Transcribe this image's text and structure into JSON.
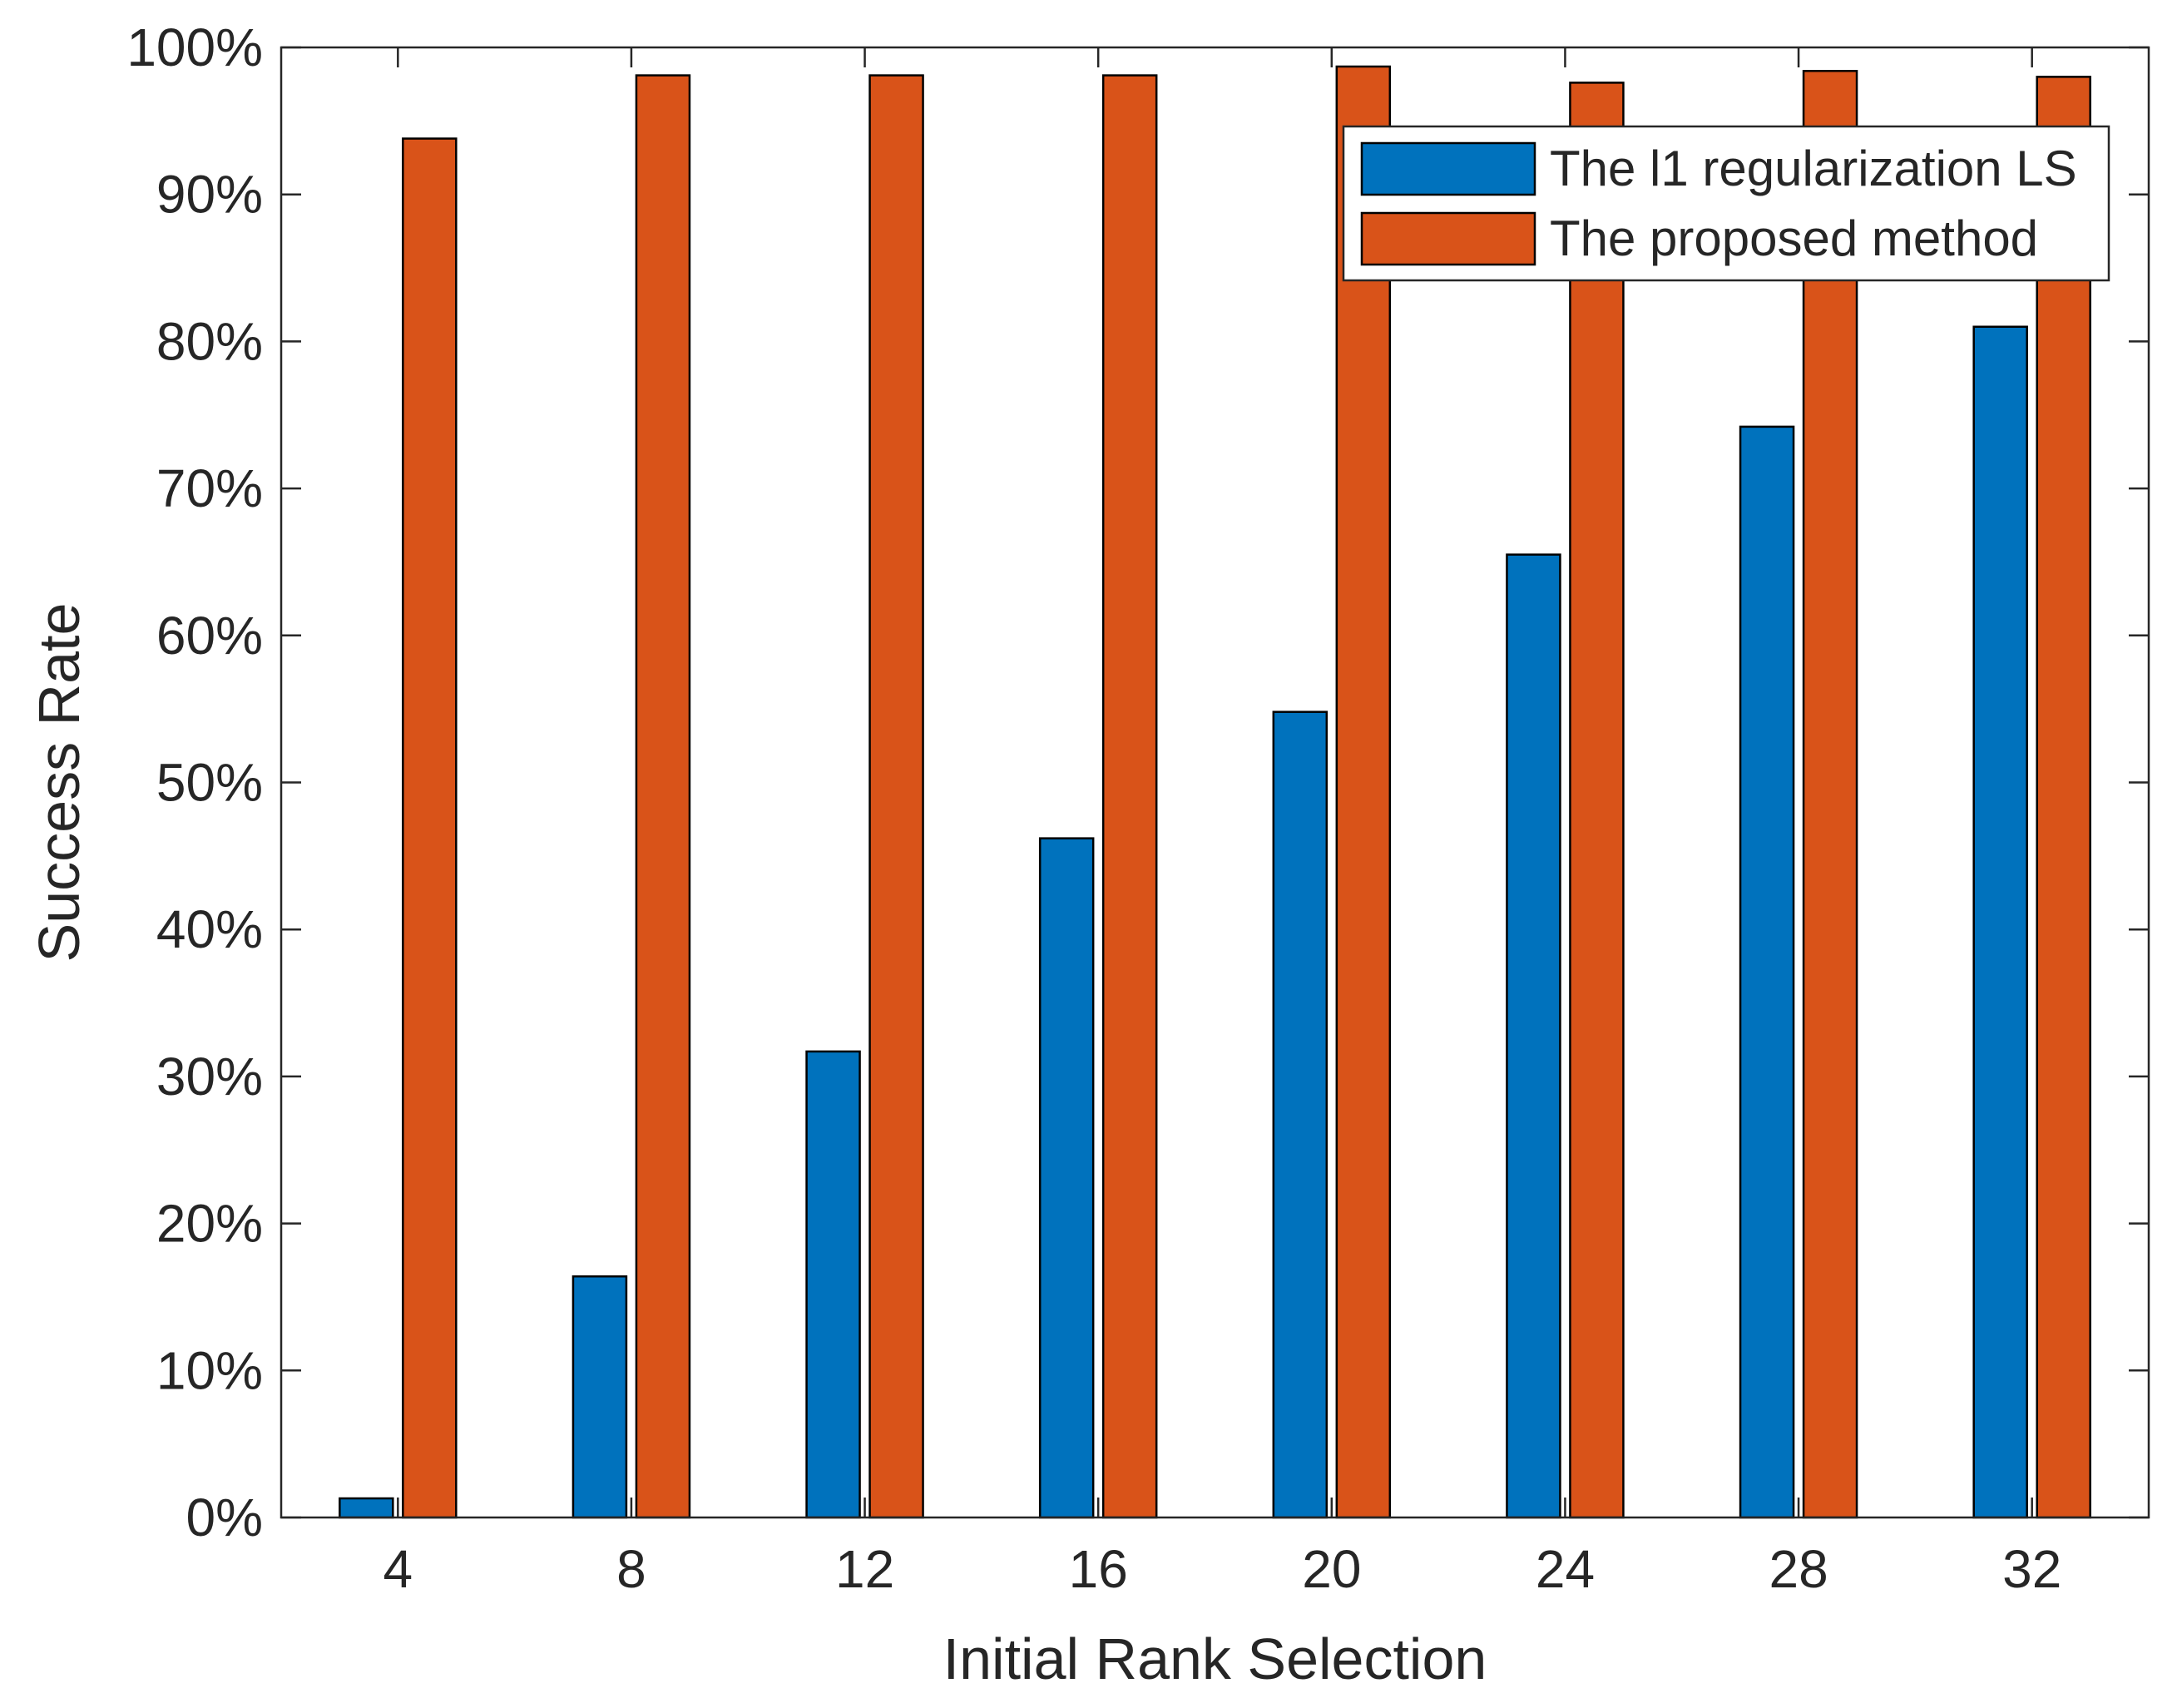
{
  "chart_data": {
    "type": "bar",
    "title": "",
    "xlabel": "Initial Rank Selection",
    "ylabel": "Success Rate",
    "categories": [
      "4",
      "8",
      "12",
      "16",
      "20",
      "24",
      "28",
      "32"
    ],
    "series": [
      {
        "name": "The l1 regularization LS",
        "color": "#0072BD",
        "values": [
          1.3,
          16.4,
          31.7,
          46.2,
          54.8,
          65.5,
          74.2,
          81.0
        ]
      },
      {
        "name": "The proposed method",
        "color": "#D95319",
        "values": [
          93.8,
          98.1,
          98.1,
          98.1,
          98.7,
          97.6,
          98.4,
          98.0
        ]
      }
    ],
    "ylim": [
      0,
      100
    ],
    "yticks": [
      0,
      10,
      20,
      30,
      40,
      50,
      60,
      70,
      80,
      90,
      100
    ],
    "ytick_labels": [
      "0%",
      "10%",
      "20%",
      "30%",
      "40%",
      "50%",
      "60%",
      "70%",
      "80%",
      "90%",
      "100%"
    ],
    "grid": false,
    "legend_position": "top-right"
  }
}
